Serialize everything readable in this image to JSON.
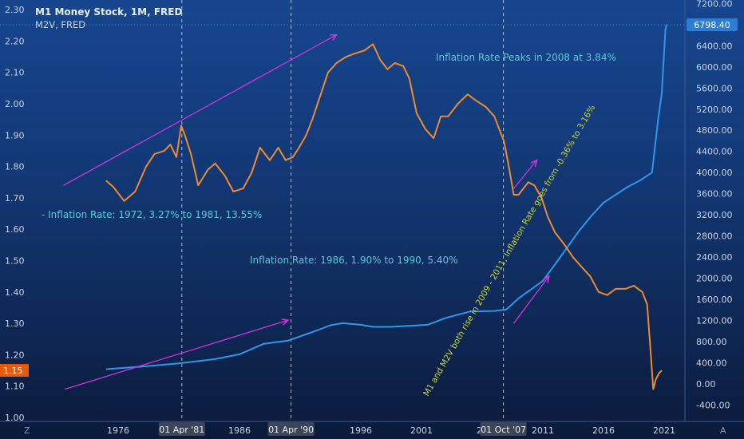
{
  "header": {
    "title": "M1 Money Stock, 1M, FRED",
    "subtitle": "M2V, FRED"
  },
  "colors": {
    "background_top": "#17468f",
    "background_bottom": "#0b1a3a",
    "m1_line": "#2f97ea",
    "m2v_line": "#f08a2c",
    "arrow": "#d233e0",
    "text_cyan": "#59c9d9",
    "text_yellow": "#c9d437",
    "price_tag": "#e8590c"
  },
  "axis_right_ticks": [
    "7200.00",
    "6800.00",
    "6400.00",
    "6000.00",
    "5600.00",
    "5200.00",
    "4800.00",
    "4400.00",
    "4000.00",
    "3600.00",
    "3200.00",
    "2800.00",
    "2400.00",
    "2000.00",
    "1600.00",
    "1200.00",
    "800.00",
    "400.00",
    "0.00",
    "-400.00"
  ],
  "axis_left_ticks": [
    "2.30",
    "2.20",
    "2.10",
    "2.00",
    "1.90",
    "1.80",
    "1.70",
    "1.60",
    "1.50",
    "1.40",
    "1.30",
    "1.20",
    "1.10",
    "1.00"
  ],
  "x_ticks": [
    "1976",
    "1986",
    "1996",
    "2001",
    "2011",
    "2016",
    "2021"
  ],
  "x_tick_partial": "20",
  "m1_last_label": "6798.40",
  "m2v_last_label": "1.15",
  "markers": [
    "01 Apr '81",
    "01 Apr '90",
    "01 Oct '07"
  ],
  "annotations": {
    "peak": "Inflation Rate Peaks in 2008 at 3.84%",
    "rate_1972": "- Inflation Rate: 1972, 3.27% to 1981, 13.55%",
    "rate_1986": "Inflation Rate: 1986, 1.90% to 1990, 5.40%",
    "rotated": "M1 and M2V both rise in 2009 - 2011, Inflation Rate goes from -0.36% to 3.16%"
  },
  "corner_left": "Z",
  "corner_right": "A",
  "chart_data": {
    "type": "line",
    "x_range": [
      1972,
      2021.5
    ],
    "series": [
      {
        "name": "M1 Money Stock",
        "axis": "right",
        "ylim": [
          -400,
          7200
        ],
        "x": [
          1975.0,
          1978.0,
          1981.0,
          1984.0,
          1986.0,
          1988.0,
          1990.0,
          1992.0,
          1993.5,
          1994.5,
          1996.0,
          1997.0,
          1998.5,
          2000.0,
          2001.5,
          2003.0,
          2005.0,
          2007.0,
          2008.0,
          2009.0,
          2011.0,
          2012.0,
          2013.0,
          2014.0,
          2015.0,
          2016.0,
          2017.0,
          2018.0,
          2019.0,
          2020.0,
          2020.2,
          2020.5,
          2020.8,
          2021.0,
          2021.1,
          2021.2
        ],
        "y": [
          280,
          330,
          390,
          470,
          560,
          760,
          820,
          980,
          1110,
          1150,
          1120,
          1080,
          1080,
          1100,
          1120,
          1250,
          1370,
          1380,
          1410,
          1620,
          1950,
          2260,
          2580,
          2900,
          3180,
          3430,
          3580,
          3730,
          3850,
          4000,
          4400,
          5000,
          5500,
          6300,
          6700,
          6798.4
        ]
      },
      {
        "name": "M2V",
        "axis": "left",
        "ylim": [
          1.0,
          2.32
        ],
        "x": [
          1975.0,
          1975.6,
          1976.5,
          1977.4,
          1978.3,
          1979.0,
          1979.8,
          1980.3,
          1980.8,
          1981.2,
          1981.5,
          1982.0,
          1982.6,
          1983.4,
          1984.0,
          1984.8,
          1985.5,
          1986.3,
          1987.0,
          1987.7,
          1988.5,
          1989.2,
          1989.8,
          1990.4,
          1990.9,
          1991.5,
          1992.0,
          1992.7,
          1993.3,
          1994.0,
          1994.8,
          1995.5,
          1996.3,
          1997.0,
          1997.6,
          1998.2,
          1998.8,
          1999.5,
          2000.0,
          2000.6,
          2001.3,
          2002.0,
          2002.6,
          2003.2,
          2004.0,
          2004.8,
          2005.5,
          2006.3,
          2007.0,
          2007.8,
          2008.2,
          2008.6,
          2009.0,
          2009.4,
          2009.8,
          2010.3,
          2010.9,
          2011.4,
          2012.0,
          2012.8,
          2013.5,
          2014.2,
          2014.9,
          2015.6,
          2016.3,
          2017.0,
          2017.8,
          2018.5,
          2019.2,
          2019.6,
          2019.9,
          2020.1,
          2020.3,
          2020.55,
          2020.8
        ],
        "y": [
          1.755,
          1.735,
          1.69,
          1.72,
          1.8,
          1.84,
          1.85,
          1.87,
          1.83,
          1.93,
          1.9,
          1.84,
          1.74,
          1.79,
          1.81,
          1.77,
          1.72,
          1.73,
          1.78,
          1.86,
          1.82,
          1.86,
          1.82,
          1.83,
          1.86,
          1.9,
          1.95,
          2.03,
          2.1,
          2.13,
          2.15,
          2.16,
          2.17,
          2.19,
          2.14,
          2.11,
          2.13,
          2.12,
          2.08,
          1.97,
          1.92,
          1.89,
          1.96,
          1.96,
          2.0,
          2.03,
          2.01,
          1.99,
          1.96,
          1.88,
          1.8,
          1.71,
          1.71,
          1.73,
          1.75,
          1.74,
          1.7,
          1.64,
          1.59,
          1.55,
          1.51,
          1.48,
          1.45,
          1.4,
          1.39,
          1.41,
          1.41,
          1.42,
          1.4,
          1.36,
          1.2,
          1.09,
          1.12,
          1.14,
          1.15
        ]
      }
    ],
    "markers": [
      {
        "label": "01 Apr '81",
        "x": 1981.25
      },
      {
        "label": "01 Apr '90",
        "x": 1990.25
      },
      {
        "label": "01 Oct '07",
        "x": 2007.75
      }
    ],
    "arrows": [
      {
        "from": [
          1971.5,
          1.74
        ],
        "to": [
          1994.0,
          2.22
        ]
      },
      {
        "from": [
          1971.6,
          1.09
        ],
        "to": [
          1990.0,
          1.31
        ]
      },
      {
        "from": [
          2008.6,
          1.73
        ],
        "to": [
          2010.5,
          1.82
        ]
      },
      {
        "from": [
          2008.6,
          1.3
        ],
        "to": [
          2011.5,
          1.45
        ]
      }
    ],
    "grid": false
  }
}
